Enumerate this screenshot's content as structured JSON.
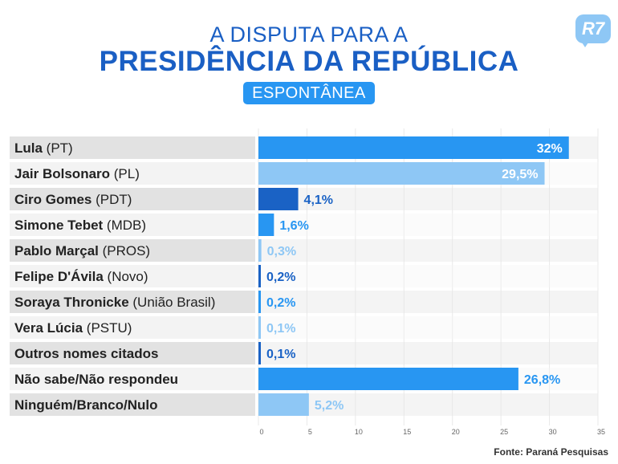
{
  "header": {
    "title_line1": "A DISPUTA PARA A",
    "title_line2": "PRESIDÊNCIA DA REPÚBLICA",
    "badge": "ESPONTÂNEA",
    "logo": "R7"
  },
  "source": "Fonte: Paraná Pesquisas",
  "colors": {
    "dark_blue": "#1a62c5",
    "mid_blue": "#2896f2",
    "light_blue": "#8ec7f5",
    "title_blue": "#1a5fc4"
  },
  "chart_data": {
    "type": "bar",
    "orientation": "horizontal",
    "xlim": [
      0,
      35
    ],
    "x_ticks": [
      "0",
      "5",
      "10",
      "15",
      "20",
      "25",
      "30",
      "35"
    ],
    "grid": true,
    "items": [
      {
        "name": "Lula",
        "party": "(PT)",
        "value": 32,
        "label": "32%",
        "color": "#2896f2",
        "label_inside": true
      },
      {
        "name": "Jair Bolsonaro",
        "party": "(PL)",
        "value": 29.5,
        "label": "29,5%",
        "color": "#8ec7f5",
        "label_inside": true
      },
      {
        "name": "Ciro Gomes",
        "party": "(PDT)",
        "value": 4.1,
        "label": "4,1%",
        "color": "#1a62c5",
        "label_inside": false
      },
      {
        "name": "Simone Tebet",
        "party": "(MDB)",
        "value": 1.6,
        "label": "1,6%",
        "color": "#2896f2",
        "label_inside": false
      },
      {
        "name": "Pablo Marçal",
        "party": "(PROS)",
        "value": 0.3,
        "label": "0,3%",
        "color": "#8ec7f5",
        "label_inside": false
      },
      {
        "name": "Felipe D'Ávila",
        "party": "(Novo)",
        "value": 0.2,
        "label": "0,2%",
        "color": "#1a62c5",
        "label_inside": false
      },
      {
        "name": "Soraya Thronicke",
        "party": "(União Brasil)",
        "value": 0.2,
        "label": "0,2%",
        "color": "#2896f2",
        "label_inside": false
      },
      {
        "name": "Vera Lúcia",
        "party": "(PSTU)",
        "value": 0.1,
        "label": "0,1%",
        "color": "#8ec7f5",
        "label_inside": false
      },
      {
        "name": "Outros nomes citados",
        "party": "",
        "value": 0.1,
        "label": "0,1%",
        "color": "#1a62c5",
        "label_inside": false
      },
      {
        "name": "Não sabe/Não respondeu",
        "party": "",
        "value": 26.8,
        "label": "26,8%",
        "color": "#2896f2",
        "label_inside": false
      },
      {
        "name": "Ninguém/Branco/Nulo",
        "party": "",
        "value": 5.2,
        "label": "5,2%",
        "color": "#8ec7f5",
        "label_inside": false
      }
    ]
  }
}
